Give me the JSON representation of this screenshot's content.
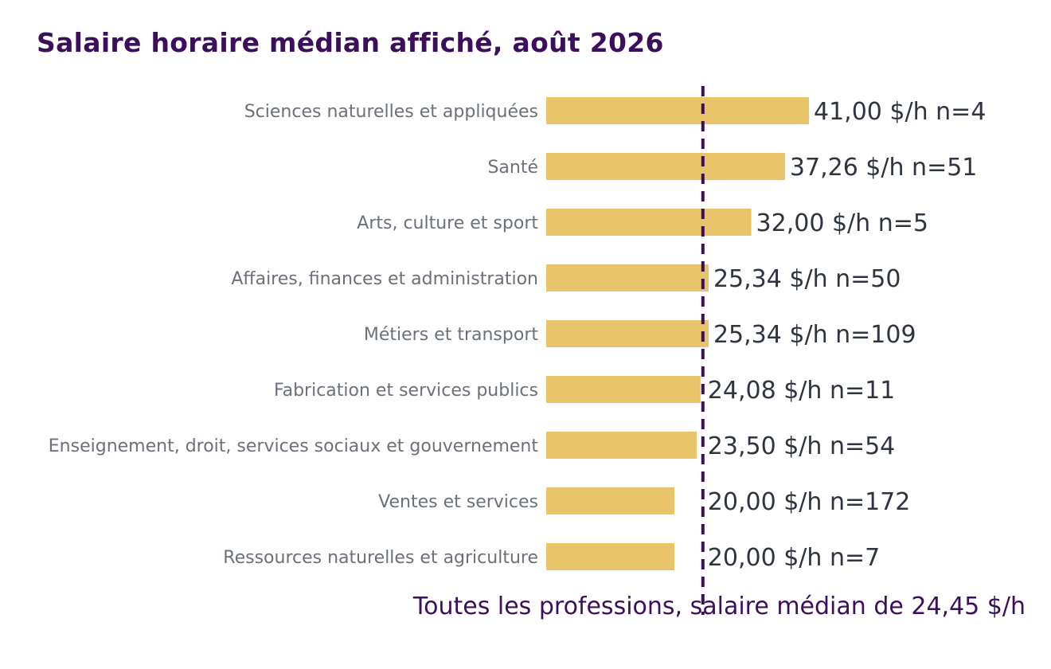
{
  "chart_data": {
    "type": "bar",
    "orientation": "horizontal",
    "title": "Salaire horaire médian affiché, août 2026",
    "categories": [
      "Sciences naturelles et appliquées",
      "Santé",
      "Arts, culture et sport",
      "Affaires, finances et administration",
      "Métiers et transport",
      "Fabrication et services publics",
      "Enseignement, droit, services sociaux et gouvernement",
      "Ventes et services",
      "Ressources naturelles et agriculture"
    ],
    "values": [
      41.0,
      37.26,
      32.0,
      25.34,
      25.34,
      24.08,
      23.5,
      20.0,
      20.0
    ],
    "labels": [
      "41,00 $/h  n=4",
      "37,26 $/h  n=51",
      "32,00 $/h  n=5",
      "25,34 $/h  n=50",
      "25,34 $/h  n=109",
      "24,08 $/h  n=11",
      "23,50 $/h  n=54",
      "20,00 $/h  n=172",
      "20,00 $/h  n=7"
    ],
    "reference_line": {
      "value": 24.45,
      "label": "Toutes les professions, salaire médian de 24,45 $/h",
      "color": "#3b0f5c",
      "style": "dashed"
    },
    "bar_color": "#e8c46a",
    "xlim": [
      0,
      41
    ],
    "grid": false,
    "legend": "none"
  }
}
